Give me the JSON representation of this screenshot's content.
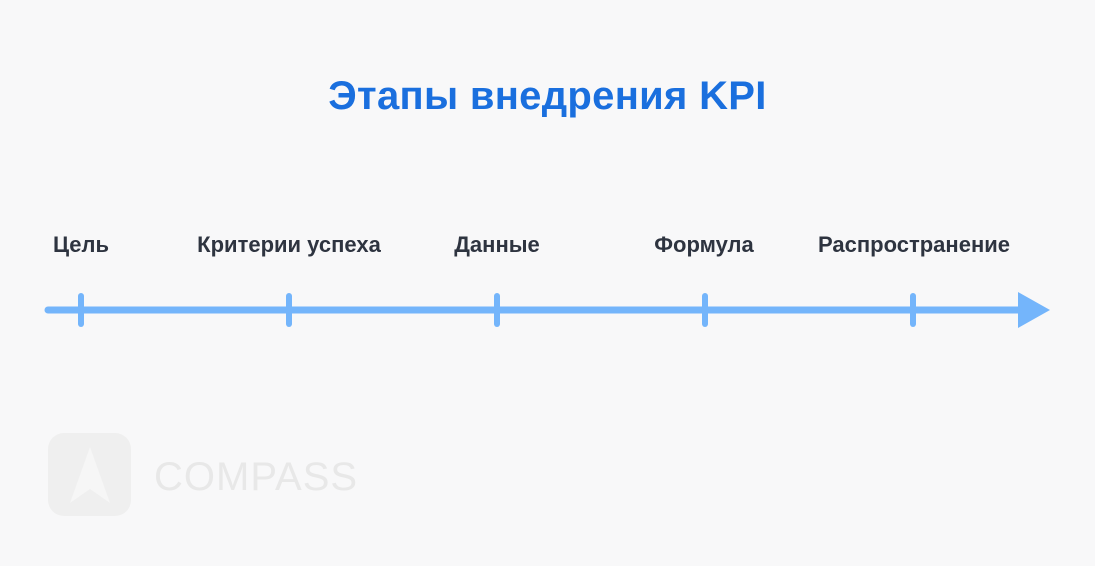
{
  "title": "Этапы внедрения KPI",
  "stages": [
    {
      "label": "Цель"
    },
    {
      "label": "Критерии успеха"
    },
    {
      "label": "Данные"
    },
    {
      "label": "Формула"
    },
    {
      "label": "Распространение"
    }
  ],
  "colors": {
    "title": "#1a6fde",
    "timeline": "#74b5fb",
    "label": "#2e3440"
  },
  "watermark": {
    "text": "COMPASS",
    "icon": "compass-arrow-icon"
  }
}
